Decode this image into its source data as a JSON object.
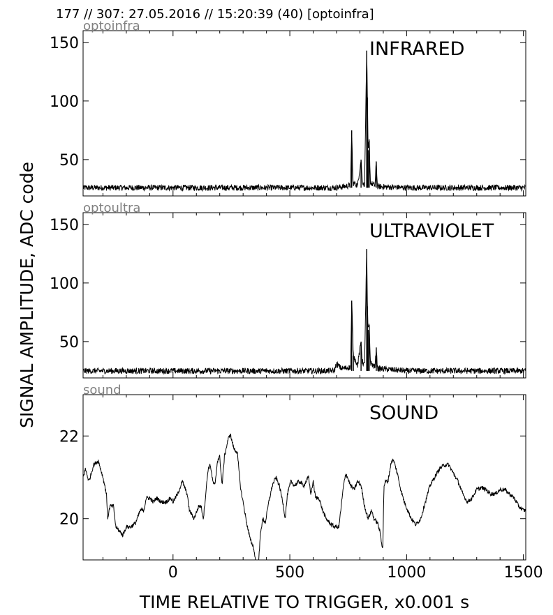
{
  "header": "177 // 307:   27.05.2016 // 15:20:39 (40)  [optoinfra]",
  "ylabel": "SIGNAL AMPLITUDE,  ADC code",
  "xlabel": "TIME RELATIVE TO TRIGGER,   x0.001 s",
  "x_ticks": [
    "0",
    "500",
    "1000",
    "1500"
  ],
  "chart_data": [
    {
      "type": "line",
      "source_label": "optoinfra",
      "title": "INFRARED",
      "xlim": [
        -385,
        1510
      ],
      "ylim": [
        19,
        160
      ],
      "yticks": [
        50,
        100,
        150
      ],
      "baseline": 26,
      "noise": 2.5,
      "series": [
        {
          "values": [
            [
              -385,
              26
            ],
            [
              700,
              26
            ],
            [
              760,
              28
            ],
            [
              765,
              75
            ],
            [
              770,
              30
            ],
            [
              790,
              28
            ],
            [
              805,
              50
            ],
            [
              810,
              32
            ],
            [
              820,
              28
            ],
            [
              829,
              143
            ],
            [
              832,
              103
            ],
            [
              835,
              58
            ],
            [
              840,
              66
            ],
            [
              845,
              30
            ],
            [
              865,
              28
            ],
            [
              870,
              48
            ],
            [
              875,
              27
            ],
            [
              1000,
              26
            ],
            [
              1500,
              26
            ]
          ]
        }
      ]
    },
    {
      "type": "line",
      "source_label": "optoultra",
      "title": "ULTRAVIOLET",
      "xlim": [
        -385,
        1510
      ],
      "ylim": [
        19,
        160
      ],
      "yticks": [
        50,
        100,
        150
      ],
      "baseline": 25,
      "noise": 2.5,
      "series": [
        {
          "values": [
            [
              -385,
              25
            ],
            [
              690,
              25
            ],
            [
              700,
              31
            ],
            [
              720,
              27
            ],
            [
              760,
              28
            ],
            [
              765,
              85
            ],
            [
              772,
              38
            ],
            [
              790,
              30
            ],
            [
              805,
              50
            ],
            [
              810,
              33
            ],
            [
              820,
              30
            ],
            [
              829,
              129
            ],
            [
              832,
              80
            ],
            [
              835,
              60
            ],
            [
              840,
              64
            ],
            [
              845,
              32
            ],
            [
              865,
              28
            ],
            [
              870,
              45
            ],
            [
              875,
              27
            ],
            [
              1000,
              25
            ],
            [
              1500,
              25
            ]
          ]
        }
      ]
    },
    {
      "type": "line",
      "source_label": "sound",
      "title": "SOUND",
      "xlim": [
        -385,
        1510
      ],
      "ylim": [
        19,
        23
      ],
      "yticks": [
        20,
        22
      ],
      "baseline": 0,
      "noise": 0.05,
      "series": [
        {
          "values": [
            [
              -385,
              21.0
            ],
            [
              -375,
              21.2
            ],
            [
              -360,
              20.9
            ],
            [
              -340,
              21.3
            ],
            [
              -320,
              21.4
            ],
            [
              -300,
              21.0
            ],
            [
              -285,
              20.6
            ],
            [
              -280,
              20.0
            ],
            [
              -270,
              20.3
            ],
            [
              -255,
              20.3
            ],
            [
              -245,
              19.8
            ],
            [
              -230,
              19.7
            ],
            [
              -215,
              19.6
            ],
            [
              -200,
              19.8
            ],
            [
              -180,
              19.8
            ],
            [
              -160,
              19.9
            ],
            [
              -140,
              20.2
            ],
            [
              -125,
              20.2
            ],
            [
              -115,
              20.5
            ],
            [
              -100,
              20.5
            ],
            [
              -85,
              20.4
            ],
            [
              -70,
              20.5
            ],
            [
              -50,
              20.4
            ],
            [
              -30,
              20.4
            ],
            [
              -10,
              20.5
            ],
            [
              0,
              20.4
            ],
            [
              20,
              20.6
            ],
            [
              40,
              20.9
            ],
            [
              60,
              20.6
            ],
            [
              70,
              20.2
            ],
            [
              90,
              20.0
            ],
            [
              110,
              20.3
            ],
            [
              120,
              20.3
            ],
            [
              130,
              20.0
            ],
            [
              150,
              21.2
            ],
            [
              160,
              21.3
            ],
            [
              170,
              20.9
            ],
            [
              180,
              20.8
            ],
            [
              190,
              21.4
            ],
            [
              200,
              21.5
            ],
            [
              210,
              20.8
            ],
            [
              220,
              21.5
            ],
            [
              235,
              21.9
            ],
            [
              245,
              22.05
            ],
            [
              260,
              21.7
            ],
            [
              275,
              21.6
            ],
            [
              290,
              20.7
            ],
            [
              300,
              20.4
            ],
            [
              315,
              19.9
            ],
            [
              330,
              19.5
            ],
            [
              345,
              19.3
            ],
            [
              355,
              18.9
            ],
            [
              365,
              18.8
            ],
            [
              375,
              19.7
            ],
            [
              385,
              20.0
            ],
            [
              395,
              19.9
            ],
            [
              410,
              20.4
            ],
            [
              425,
              20.8
            ],
            [
              440,
              21.0
            ],
            [
              455,
              20.8
            ],
            [
              470,
              20.4
            ],
            [
              480,
              20.0
            ],
            [
              490,
              20.6
            ],
            [
              505,
              20.9
            ],
            [
              520,
              20.8
            ],
            [
              540,
              20.9
            ],
            [
              560,
              20.8
            ],
            [
              580,
              21.0
            ],
            [
              590,
              20.6
            ],
            [
              600,
              20.9
            ],
            [
              610,
              20.5
            ],
            [
              625,
              20.5
            ],
            [
              640,
              20.2
            ],
            [
              655,
              20.0
            ],
            [
              670,
              19.9
            ],
            [
              690,
              19.8
            ],
            [
              710,
              19.8
            ],
            [
              730,
              20.8
            ],
            [
              740,
              21.1
            ],
            [
              760,
              20.8
            ],
            [
              775,
              20.7
            ],
            [
              790,
              20.9
            ],
            [
              805,
              20.8
            ],
            [
              820,
              20.3
            ],
            [
              835,
              20.0
            ],
            [
              850,
              20.2
            ],
            [
              860,
              20.0
            ],
            [
              875,
              19.9
            ],
            [
              885,
              19.7
            ],
            [
              893,
              19.4
            ],
            [
              898,
              19.3
            ],
            [
              903,
              20.8
            ],
            [
              910,
              20.9
            ],
            [
              920,
              20.9
            ],
            [
              935,
              21.4
            ],
            [
              945,
              21.4
            ],
            [
              960,
              21.1
            ],
            [
              975,
              20.7
            ],
            [
              990,
              20.4
            ],
            [
              1005,
              20.2
            ],
            [
              1020,
              20.0
            ],
            [
              1040,
              19.85
            ],
            [
              1060,
              20.0
            ],
            [
              1080,
              20.4
            ],
            [
              1100,
              20.8
            ],
            [
              1120,
              21.0
            ],
            [
              1140,
              21.2
            ],
            [
              1160,
              21.3
            ],
            [
              1180,
              21.3
            ],
            [
              1200,
              21.1
            ],
            [
              1220,
              20.9
            ],
            [
              1240,
              20.6
            ],
            [
              1260,
              20.4
            ],
            [
              1280,
              20.5
            ],
            [
              1300,
              20.7
            ],
            [
              1320,
              20.75
            ],
            [
              1340,
              20.7
            ],
            [
              1360,
              20.6
            ],
            [
              1380,
              20.6
            ],
            [
              1400,
              20.7
            ],
            [
              1420,
              20.7
            ],
            [
              1440,
              20.6
            ],
            [
              1460,
              20.5
            ],
            [
              1480,
              20.3
            ],
            [
              1500,
              20.2
            ]
          ]
        }
      ]
    }
  ]
}
